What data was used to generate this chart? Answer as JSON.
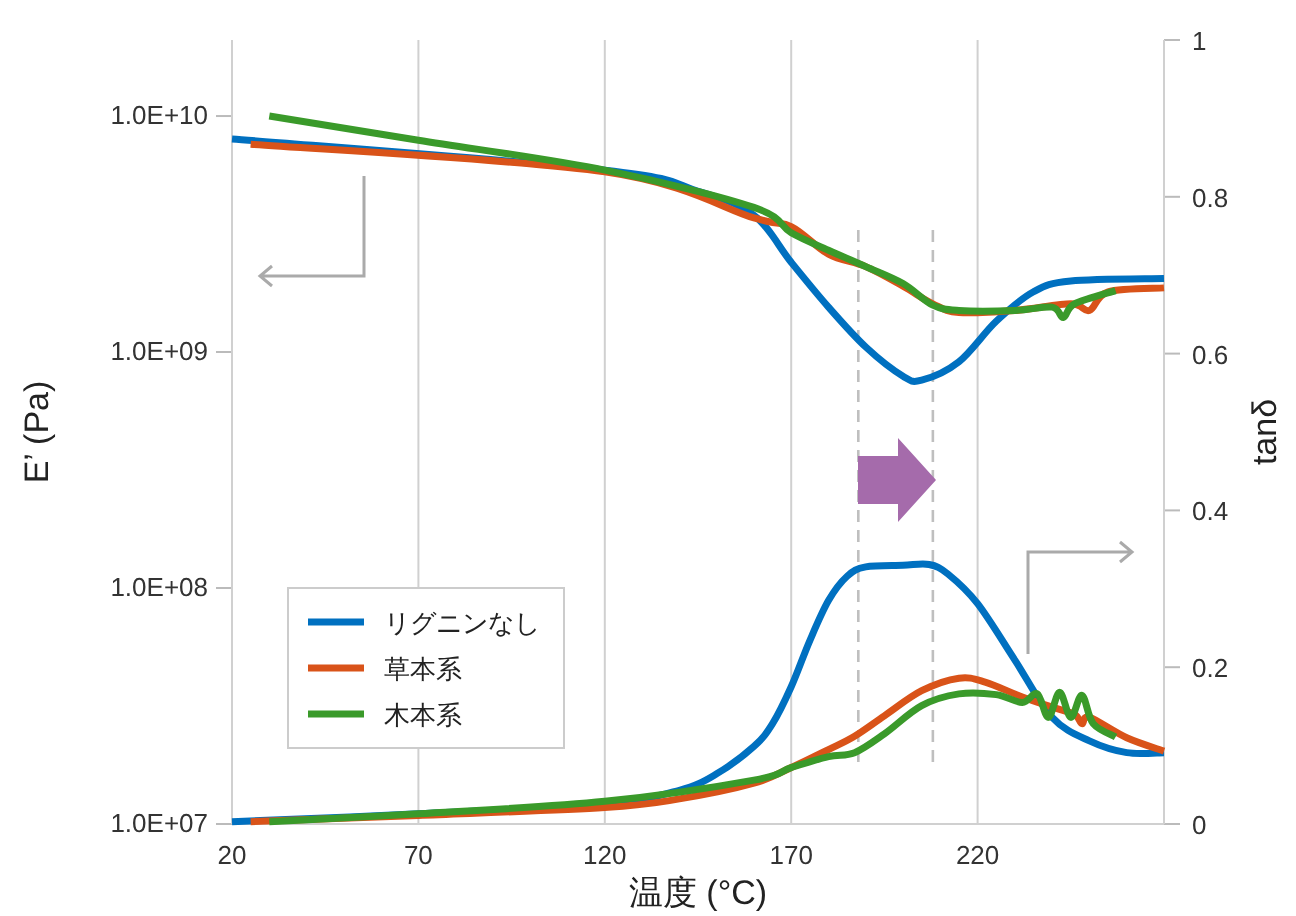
{
  "chart_data": {
    "type": "line",
    "xlabel": "温度 (°C)",
    "ylabel": "E’ (Pa)",
    "y2label": "tanδ",
    "xlim": [
      20,
      270
    ],
    "xticks": [
      20,
      70,
      120,
      170,
      220
    ],
    "ylim": [
      10000000,
      21000000000
    ],
    "yticks": [
      {
        "value": 10000000,
        "label": "1.0E+07"
      },
      {
        "value": 100000000,
        "label": "1.0E+08"
      },
      {
        "value": 1000000000,
        "label": "1.0E+09"
      },
      {
        "value": 10000000000,
        "label": "1.0E+10"
      }
    ],
    "log": "y",
    "y2lim": [
      0,
      1
    ],
    "y2ticks": [
      0,
      0.2,
      0.4,
      0.6,
      0.8,
      1
    ],
    "grid": "x",
    "legend": "left",
    "line_style": "solid",
    "marker": "none",
    "ref_lines": [
      {
        "axis": "x",
        "value": 188,
        "color": "#bfbfbf",
        "line_style": "dashed"
      },
      {
        "axis": "x",
        "value": 208,
        "color": "#bfbfbf",
        "line_style": "dashed"
      }
    ],
    "series": [
      {
        "name": "リグニンなし",
        "color": "#0070c0",
        "x": [
          20,
          120,
          145,
          160,
          170,
          180,
          190,
          200,
          205,
          215,
          225,
          235,
          245,
          270
        ],
        "values": [
          8000000000.0,
          5900000000.0,
          4800000000.0,
          3800000000.0,
          2400000000.0,
          1550000000.0,
          1050000000.0,
          790000000.0,
          760000000.0,
          910000000.0,
          1350000000.0,
          1800000000.0,
          2000000000.0,
          2050000000.0
        ]
      },
      {
        "name": "草本系",
        "color": "#d95319",
        "x": [
          25,
          120,
          160,
          170,
          180,
          190,
          200,
          208,
          215,
          230,
          245,
          250,
          255,
          270
        ],
        "values": [
          7600000000.0,
          5800000000.0,
          3700000000.0,
          3400000000.0,
          2600000000.0,
          2300000000.0,
          1900000000.0,
          1600000000.0,
          1470000000.0,
          1500000000.0,
          1600000000.0,
          1500000000.0,
          1800000000.0,
          1870000000.0
        ]
      },
      {
        "name": "木本系",
        "color": "#3a9a2a",
        "x": [
          30,
          70,
          120,
          160,
          170,
          180,
          190,
          200,
          208,
          215,
          230,
          240,
          243,
          246,
          257
        ],
        "values": [
          10000000000.0,
          7900000000.0,
          5900000000.0,
          4100000000.0,
          3200000000.0,
          2700000000.0,
          2300000000.0,
          1950000000.0,
          1580000000.0,
          1500000000.0,
          1500000000.0,
          1550000000.0,
          1400000000.0,
          1600000000.0,
          1820000000.0
        ]
      },
      {
        "color": "#0070c0",
        "axis": "y2",
        "x": [
          20,
          70,
          120,
          140,
          150,
          160,
          165,
          170,
          175,
          180,
          185,
          190,
          200,
          207,
          212,
          220,
          230,
          240,
          250,
          260,
          270
        ],
        "values": [
          0.003,
          0.013,
          0.026,
          0.043,
          0.064,
          0.099,
          0.128,
          0.175,
          0.234,
          0.285,
          0.316,
          0.328,
          0.33,
          0.331,
          0.319,
          0.281,
          0.209,
          0.136,
          0.106,
          0.091,
          0.091
        ]
      },
      {
        "color": "#d95319",
        "axis": "y2",
        "x": [
          25,
          70,
          120,
          140,
          160,
          170,
          180,
          187,
          195,
          205,
          215,
          222,
          232,
          240,
          246,
          248,
          250,
          260,
          270
        ],
        "values": [
          0.003,
          0.011,
          0.021,
          0.032,
          0.052,
          0.072,
          0.095,
          0.112,
          0.138,
          0.17,
          0.186,
          0.181,
          0.162,
          0.149,
          0.14,
          0.128,
          0.136,
          0.11,
          0.093
        ]
      },
      {
        "color": "#3a9a2a",
        "axis": "y2",
        "x": [
          30,
          70,
          120,
          160,
          170,
          180,
          187,
          195,
          205,
          215,
          225,
          232,
          236,
          239,
          242,
          245,
          248,
          251,
          257
        ],
        "values": [
          0.003,
          0.013,
          0.029,
          0.056,
          0.072,
          0.086,
          0.091,
          0.115,
          0.151,
          0.166,
          0.165,
          0.155,
          0.166,
          0.136,
          0.168,
          0.136,
          0.164,
          0.128,
          0.111
        ]
      }
    ]
  }
}
